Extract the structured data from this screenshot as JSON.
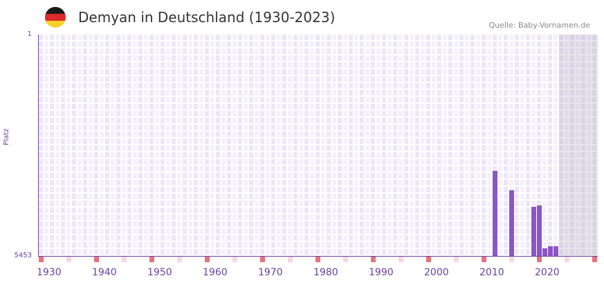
{
  "header": {
    "title": "Demyan in Deutschland (1930-2023)",
    "source": "Quelle: Baby-Vornamen.de",
    "flag_colors": [
      "#1a1a1a",
      "#dd2a2a",
      "#f9cf2a"
    ]
  },
  "chart_data": {
    "type": "bar",
    "title": "Demyan in Deutschland (1930-2023)",
    "xlabel": "",
    "ylabel": "Platz",
    "ylim": [
      5453,
      1
    ],
    "y_ticks": [
      "1",
      "5453"
    ],
    "x_ticks": [
      "1930",
      "1940",
      "1950",
      "1960",
      "1970",
      "1980",
      "1990",
      "2000",
      "2010",
      "2020"
    ],
    "xlim": [
      1930,
      2030
    ],
    "x": [
      2012,
      2015,
      2019,
      2020,
      2021,
      2022,
      2023
    ],
    "values": [
      3357,
      3834,
      4243,
      4209,
      5266,
      5214,
      5214
    ],
    "colors": {
      "bar": "#8c55c7",
      "axis": "#6a3fa0",
      "decade_marker": "#e5737b",
      "half_marker": "#f5d8e2"
    }
  }
}
